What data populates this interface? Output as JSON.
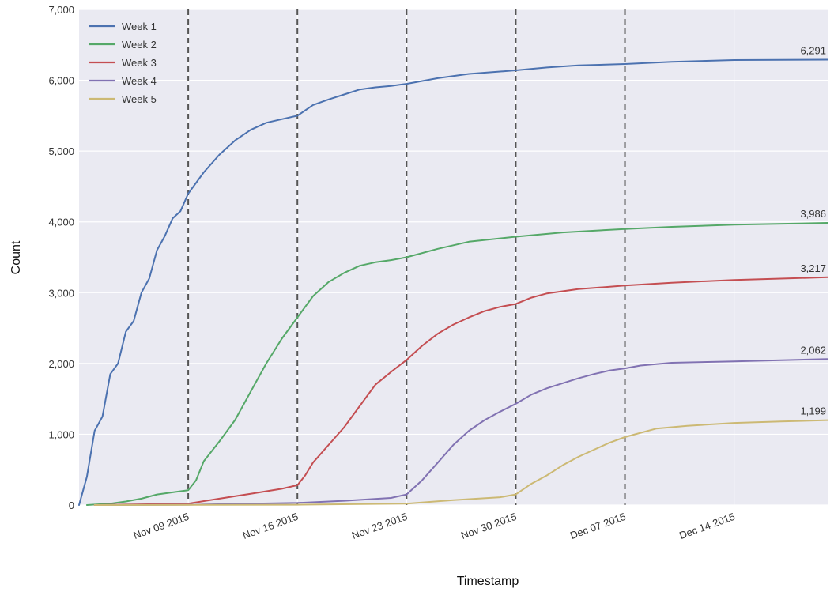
{
  "chart_data": {
    "type": "line",
    "xlabel": "Timestamp",
    "ylabel": "Count",
    "ylim": [
      0,
      7000
    ],
    "xlim": [
      "2015-11-02",
      "2015-12-20"
    ],
    "grid": true,
    "legend_position": "top-left",
    "y_ticks": [
      "0",
      "1,000",
      "2,000",
      "3,000",
      "4,000",
      "5,000",
      "6,000",
      "7,000"
    ],
    "x_ticks": [
      {
        "date": "2015-11-09",
        "label": "Nov 09 2015"
      },
      {
        "date": "2015-11-16",
        "label": "Nov 16 2015"
      },
      {
        "date": "2015-11-23",
        "label": "Nov 23 2015"
      },
      {
        "date": "2015-11-30",
        "label": "Nov 30 2015"
      },
      {
        "date": "2015-12-07",
        "label": "Dec 07 2015"
      },
      {
        "date": "2015-12-14",
        "label": "Dec 14 2015"
      }
    ],
    "vlines": [
      "2015-11-09",
      "2015-11-16",
      "2015-11-23",
      "2015-11-30",
      "2015-12-07"
    ],
    "series": [
      {
        "name": "Week 1",
        "color": "#4c72b0",
        "end_label": "6,291",
        "points": [
          [
            "2015-11-02",
            0
          ],
          [
            "2015-11-02 12:00",
            400
          ],
          [
            "2015-11-03",
            1050
          ],
          [
            "2015-11-03 12:00",
            1250
          ],
          [
            "2015-11-04",
            1850
          ],
          [
            "2015-11-04 12:00",
            2000
          ],
          [
            "2015-11-05",
            2450
          ],
          [
            "2015-11-05 12:00",
            2600
          ],
          [
            "2015-11-06",
            3000
          ],
          [
            "2015-11-06 12:00",
            3200
          ],
          [
            "2015-11-07",
            3600
          ],
          [
            "2015-11-07 12:00",
            3800
          ],
          [
            "2015-11-08",
            4050
          ],
          [
            "2015-11-08 12:00",
            4150
          ],
          [
            "2015-11-09",
            4400
          ],
          [
            "2015-11-10",
            4700
          ],
          [
            "2015-11-11",
            4950
          ],
          [
            "2015-11-12",
            5150
          ],
          [
            "2015-11-13",
            5300
          ],
          [
            "2015-11-14",
            5400
          ],
          [
            "2015-11-15",
            5450
          ],
          [
            "2015-11-16",
            5500
          ],
          [
            "2015-11-17",
            5650
          ],
          [
            "2015-11-18",
            5730
          ],
          [
            "2015-11-19",
            5800
          ],
          [
            "2015-11-20",
            5870
          ],
          [
            "2015-11-21",
            5900
          ],
          [
            "2015-11-22",
            5920
          ],
          [
            "2015-11-23",
            5950
          ],
          [
            "2015-11-25",
            6030
          ],
          [
            "2015-11-27",
            6090
          ],
          [
            "2015-11-30",
            6140
          ],
          [
            "2015-12-02",
            6180
          ],
          [
            "2015-12-04",
            6210
          ],
          [
            "2015-12-07",
            6230
          ],
          [
            "2015-12-10",
            6260
          ],
          [
            "2015-12-14",
            6285
          ],
          [
            "2015-12-20",
            6291
          ]
        ]
      },
      {
        "name": "Week 2",
        "color": "#55a868",
        "end_label": "3,986",
        "points": [
          [
            "2015-11-02 12:00",
            0
          ],
          [
            "2015-11-04",
            20
          ],
          [
            "2015-11-05",
            50
          ],
          [
            "2015-11-06",
            90
          ],
          [
            "2015-11-07",
            150
          ],
          [
            "2015-11-08",
            180
          ],
          [
            "2015-11-09",
            210
          ],
          [
            "2015-11-09 12:00",
            350
          ],
          [
            "2015-11-10",
            620
          ],
          [
            "2015-11-11",
            900
          ],
          [
            "2015-11-12",
            1200
          ],
          [
            "2015-11-13",
            1600
          ],
          [
            "2015-11-14",
            2000
          ],
          [
            "2015-11-15",
            2350
          ],
          [
            "2015-11-16",
            2650
          ],
          [
            "2015-11-17",
            2950
          ],
          [
            "2015-11-18",
            3150
          ],
          [
            "2015-11-19",
            3280
          ],
          [
            "2015-11-20",
            3380
          ],
          [
            "2015-11-21",
            3430
          ],
          [
            "2015-11-22",
            3460
          ],
          [
            "2015-11-23",
            3500
          ],
          [
            "2015-11-25",
            3620
          ],
          [
            "2015-11-27",
            3720
          ],
          [
            "2015-11-30",
            3790
          ],
          [
            "2015-12-03",
            3850
          ],
          [
            "2015-12-07",
            3900
          ],
          [
            "2015-12-10",
            3930
          ],
          [
            "2015-12-14",
            3960
          ],
          [
            "2015-12-20",
            3986
          ]
        ]
      },
      {
        "name": "Week 3",
        "color": "#c44e52",
        "end_label": "3,217",
        "points": [
          [
            "2015-11-03",
            0
          ],
          [
            "2015-11-09",
            20
          ],
          [
            "2015-11-11",
            90
          ],
          [
            "2015-11-13",
            160
          ],
          [
            "2015-11-15",
            230
          ],
          [
            "2015-11-16",
            280
          ],
          [
            "2015-11-16 12:00",
            420
          ],
          [
            "2015-11-17",
            600
          ],
          [
            "2015-11-18",
            850
          ],
          [
            "2015-11-19",
            1100
          ],
          [
            "2015-11-20",
            1400
          ],
          [
            "2015-11-21",
            1700
          ],
          [
            "2015-11-22",
            1880
          ],
          [
            "2015-11-23",
            2050
          ],
          [
            "2015-11-24",
            2250
          ],
          [
            "2015-11-25",
            2420
          ],
          [
            "2015-11-26",
            2550
          ],
          [
            "2015-11-27",
            2650
          ],
          [
            "2015-11-28",
            2740
          ],
          [
            "2015-11-29",
            2800
          ],
          [
            "2015-11-30",
            2840
          ],
          [
            "2015-12-01",
            2930
          ],
          [
            "2015-12-02",
            2990
          ],
          [
            "2015-12-04",
            3050
          ],
          [
            "2015-12-07",
            3100
          ],
          [
            "2015-12-10",
            3140
          ],
          [
            "2015-12-14",
            3180
          ],
          [
            "2015-12-20",
            3217
          ]
        ]
      },
      {
        "name": "Week 4",
        "color": "#8172b2",
        "end_label": "2,062",
        "points": [
          [
            "2015-11-03",
            0
          ],
          [
            "2015-11-09",
            5
          ],
          [
            "2015-11-16",
            30
          ],
          [
            "2015-11-19",
            60
          ],
          [
            "2015-11-22",
            100
          ],
          [
            "2015-11-23",
            150
          ],
          [
            "2015-11-24",
            350
          ],
          [
            "2015-11-25",
            600
          ],
          [
            "2015-11-26",
            850
          ],
          [
            "2015-11-27",
            1050
          ],
          [
            "2015-11-28",
            1200
          ],
          [
            "2015-11-29",
            1320
          ],
          [
            "2015-11-30",
            1430
          ],
          [
            "2015-12-01",
            1560
          ],
          [
            "2015-12-02",
            1650
          ],
          [
            "2015-12-03",
            1720
          ],
          [
            "2015-12-04",
            1790
          ],
          [
            "2015-12-05",
            1850
          ],
          [
            "2015-12-06",
            1900
          ],
          [
            "2015-12-07",
            1930
          ],
          [
            "2015-12-08",
            1970
          ],
          [
            "2015-12-10",
            2010
          ],
          [
            "2015-12-14",
            2030
          ],
          [
            "2015-12-20",
            2062
          ]
        ]
      },
      {
        "name": "Week 5",
        "color": "#ccb974",
        "end_label": "1,199",
        "points": [
          [
            "2015-11-03",
            0
          ],
          [
            "2015-11-16",
            5
          ],
          [
            "2015-11-23",
            20
          ],
          [
            "2015-11-26",
            70
          ],
          [
            "2015-11-29",
            110
          ],
          [
            "2015-11-30",
            150
          ],
          [
            "2015-12-01",
            300
          ],
          [
            "2015-12-02",
            420
          ],
          [
            "2015-12-03",
            560
          ],
          [
            "2015-12-04",
            680
          ],
          [
            "2015-12-05",
            780
          ],
          [
            "2015-12-06",
            880
          ],
          [
            "2015-12-07",
            960
          ],
          [
            "2015-12-08",
            1020
          ],
          [
            "2015-12-09",
            1080
          ],
          [
            "2015-12-11",
            1120
          ],
          [
            "2015-12-14",
            1160
          ],
          [
            "2015-12-17",
            1180
          ],
          [
            "2015-12-20",
            1199
          ]
        ]
      }
    ]
  }
}
